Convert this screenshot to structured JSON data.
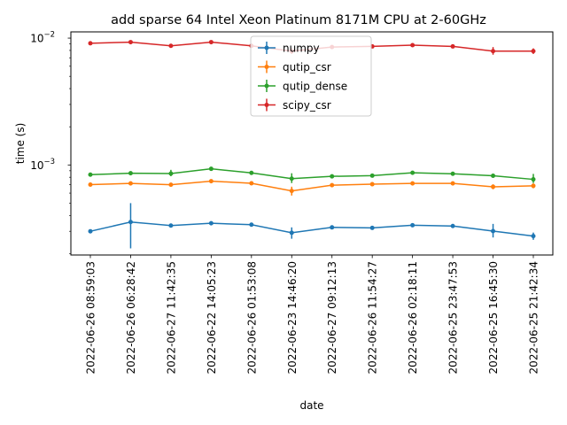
{
  "chart_data": {
    "type": "line",
    "title": "add sparse 64 Intel Xeon Platinum 8171M CPU at 2-60GHz",
    "xlabel": "date",
    "ylabel": "time (s)",
    "yscale": "log",
    "ylim": [
      0.000195,
      0.0112
    ],
    "y_tick_labels": [
      "10^-3",
      "10^-2"
    ],
    "y_ticks": [
      0.001,
      0.01
    ],
    "legend_position": "upper center",
    "grid": false,
    "categories": [
      "2022-06-26 08:59:03",
      "2022-06-26 06:28:42",
      "2022-06-27 11:42:35",
      "2022-06-22 14:05:23",
      "2022-06-26 01:53:08",
      "2022-06-23 14:46:20",
      "2022-06-27 09:12:13",
      "2022-06-26 11:54:27",
      "2022-06-26 02:18:11",
      "2022-06-25 23:47:53",
      "2022-06-25 16:45:30",
      "2022-06-25 21:42:34"
    ],
    "series": [
      {
        "name": "numpy",
        "color": "#1f77b4",
        "values": [
          0.0003,
          0.000355,
          0.000333,
          0.000347,
          0.000338,
          0.000292,
          0.000322,
          0.000319,
          0.000335,
          0.00033,
          0.000301,
          0.000275
        ],
        "err_low": [
          0.0,
          0.000135,
          0.0,
          0.0,
          0.0,
          3e-05,
          0.0,
          0.0,
          0.0,
          0.0,
          3.3e-05,
          1.8e-05
        ],
        "err_high": [
          0.0,
          0.000145,
          0.0,
          0.0,
          0.0,
          3e-05,
          0.0,
          0.0,
          0.0,
          0.0,
          4.2e-05,
          1.8e-05
        ]
      },
      {
        "name": "qutip_csr",
        "color": "#ff7f0e",
        "values": [
          0.0007,
          0.000715,
          0.000698,
          0.000745,
          0.000717,
          0.000624,
          0.000693,
          0.000705,
          0.000715,
          0.000716,
          0.000673,
          0.000685
        ],
        "err_low": [
          0.0,
          0.0,
          0.0,
          0.0,
          0.0,
          5e-05,
          0.0,
          0.0,
          0.0,
          0.0,
          3e-05,
          3e-05
        ],
        "err_high": [
          0.0,
          0.0,
          0.0,
          0.0,
          0.0,
          5e-05,
          0.0,
          0.0,
          0.0,
          0.0,
          3e-05,
          3e-05
        ]
      },
      {
        "name": "qutip_dense",
        "color": "#2ca02c",
        "values": [
          0.000838,
          0.000861,
          0.000855,
          0.000932,
          0.000866,
          0.00078,
          0.000813,
          0.000823,
          0.000868,
          0.000852,
          0.000822,
          0.00077
        ],
        "err_low": [
          0.0,
          0.0,
          4e-05,
          0.0,
          0.0,
          6e-05,
          0.0,
          0.0,
          0.0,
          0.0,
          3e-05,
          5e-05
        ],
        "err_high": [
          0.0,
          0.0,
          6e-05,
          0.0,
          0.0,
          8e-05,
          0.0,
          0.0,
          0.0,
          0.0,
          3e-05,
          8e-05
        ]
      },
      {
        "name": "scipy_csr",
        "color": "#d62728",
        "values": [
          0.0091,
          0.0093,
          0.0087,
          0.0093,
          0.0087,
          0.0079,
          0.0085,
          0.0086,
          0.0088,
          0.0086,
          0.0079,
          0.0079
        ],
        "err_low": [
          0.0,
          0.0,
          0.0,
          0.0,
          0.0,
          0.0004,
          0.0,
          0.0,
          0.0,
          0.0,
          0.0005,
          0.0004
        ],
        "err_high": [
          0.0,
          0.0,
          0.0,
          0.0,
          0.0,
          0.0004,
          0.0,
          0.0,
          0.0,
          0.0,
          0.0006,
          0.0004
        ]
      }
    ]
  }
}
